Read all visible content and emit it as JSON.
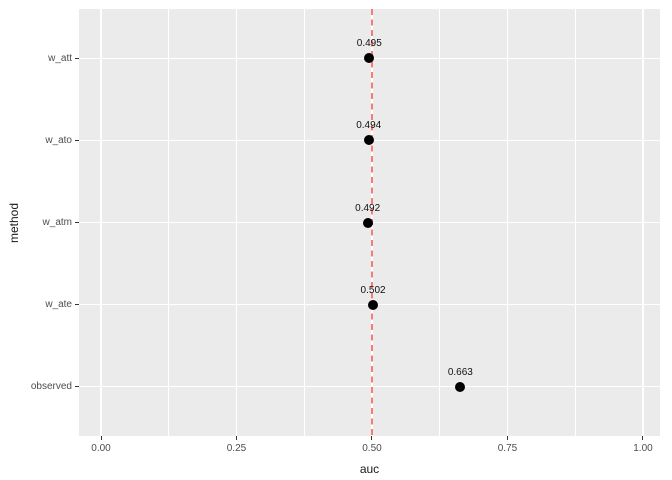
{
  "figure": {
    "background": "#FFFFFF",
    "panel_background": "#EBEBEB",
    "grid_color": "#FFFFFF",
    "tick_color": "#333333",
    "tick_label_color": "#4D4D4D"
  },
  "chart_data": {
    "type": "scatter",
    "title": "",
    "xlabel": "auc",
    "ylabel": "method",
    "categories": [
      "w_att",
      "w_ato",
      "w_atm",
      "w_ate",
      "observed"
    ],
    "values": [
      0.495,
      0.494,
      0.492,
      0.502,
      0.663
    ],
    "point_labels": [
      "0.495",
      "0.494",
      "0.492",
      "0.502",
      "0.663"
    ],
    "point_color": "#000000",
    "x_ticks": [
      0,
      0.25,
      0.5,
      0.75,
      1.0
    ],
    "x_tick_labels": [
      "0.00",
      "0.25",
      "0.50",
      "0.75",
      "1.00"
    ],
    "xlim": [
      0,
      1
    ],
    "grid": "on",
    "legend": "none",
    "reference_line": {
      "x": 0.5,
      "style": "dashed",
      "color": "#F77C76"
    }
  }
}
